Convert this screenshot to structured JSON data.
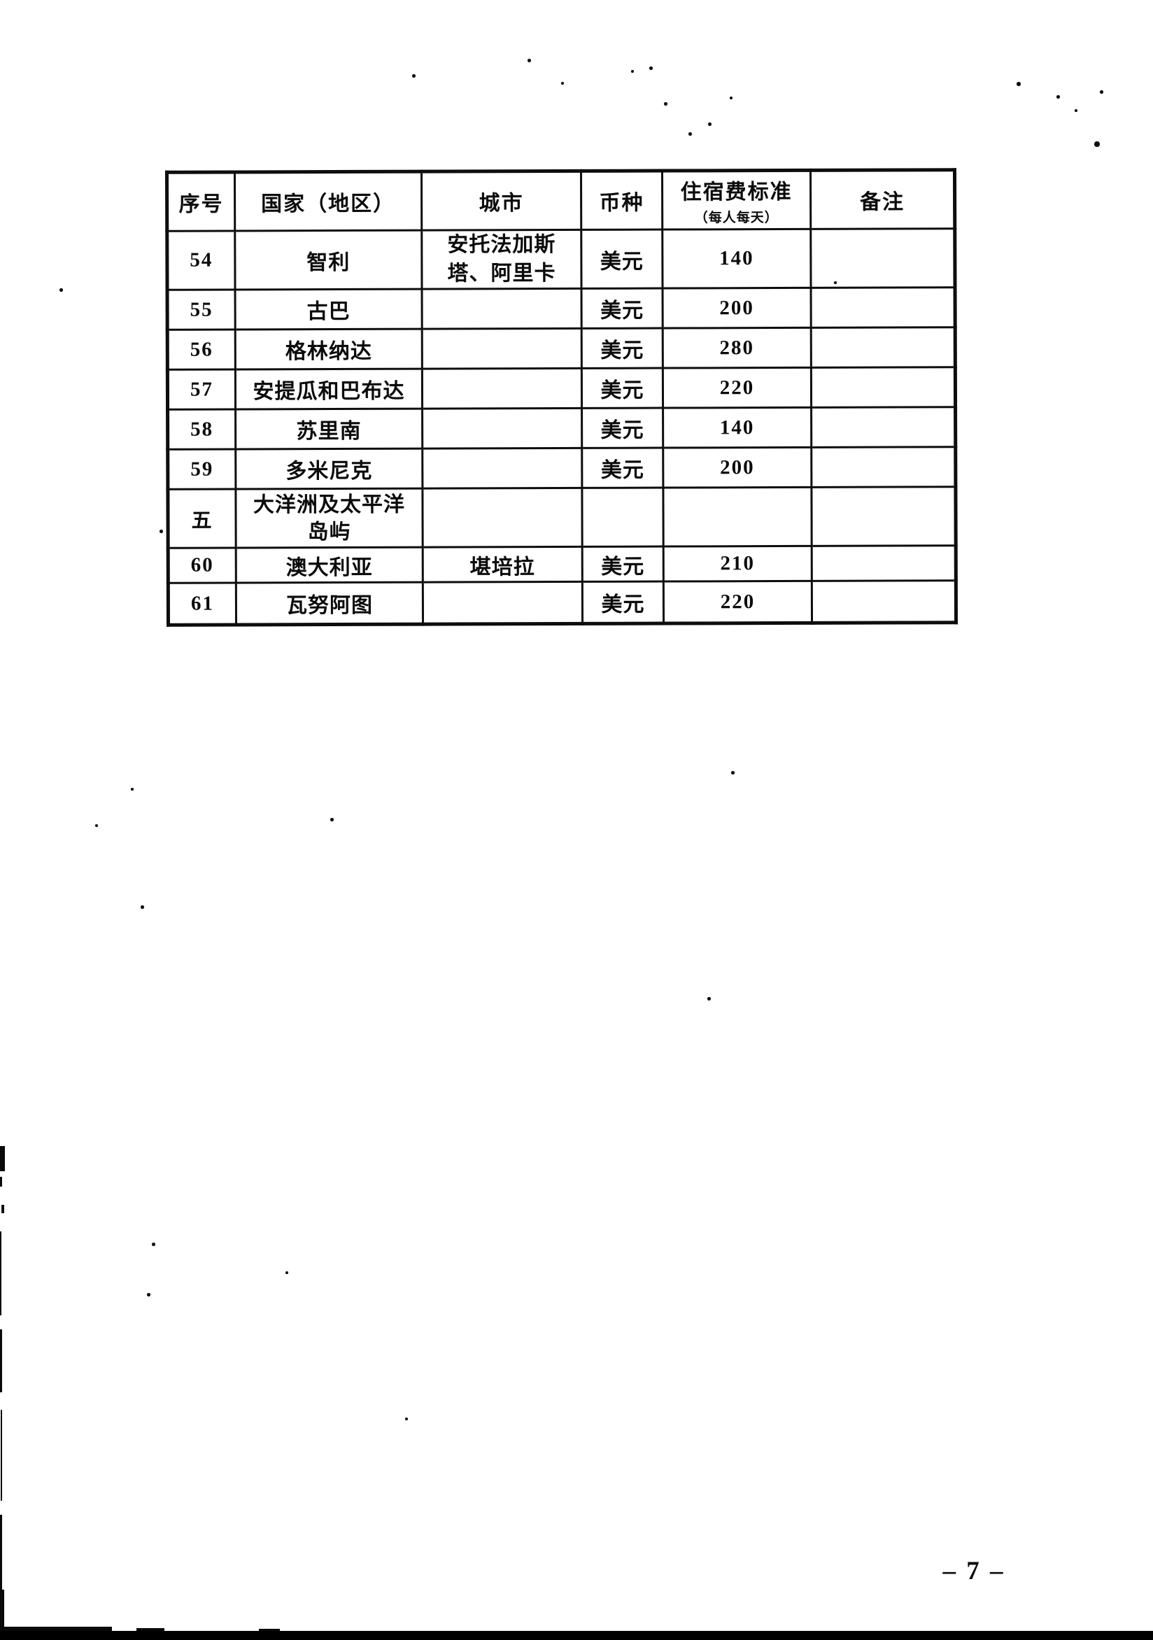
{
  "document": {
    "page_number": "– 7 –"
  },
  "table": {
    "headers": [
      "序号",
      "国家（地区）",
      "城市",
      "币种",
      "住宿费标准",
      "备注"
    ],
    "fee_subheader": "（每人每天）",
    "rows": [
      {
        "no": "54",
        "country": "智利",
        "city": "安托法加斯塔、阿里卡",
        "currency": "美元",
        "fee": "140",
        "note": ""
      },
      {
        "no": "55",
        "country": "古巴",
        "city": "",
        "currency": "美元",
        "fee": "200",
        "note": ""
      },
      {
        "no": "56",
        "country": "格林纳达",
        "city": "",
        "currency": "美元",
        "fee": "280",
        "note": ""
      },
      {
        "no": "57",
        "country": "安提瓜和巴布达",
        "city": "",
        "currency": "美元",
        "fee": "220",
        "note": ""
      },
      {
        "no": "58",
        "country": "苏里南",
        "city": "",
        "currency": "美元",
        "fee": "140",
        "note": ""
      },
      {
        "no": "59",
        "country": "多米尼克",
        "city": "",
        "currency": "美元",
        "fee": "200",
        "note": ""
      },
      {
        "no": "五",
        "country": "大洋洲及太平洋岛屿",
        "city": "",
        "currency": "",
        "fee": "",
        "note": ""
      },
      {
        "no": "60",
        "country": "澳大利亚",
        "city": "堪培拉",
        "currency": "美元",
        "fee": "210",
        "note": ""
      },
      {
        "no": "61",
        "country": "瓦努阿图",
        "city": "",
        "currency": "美元",
        "fee": "220",
        "note": ""
      }
    ]
  },
  "scan_artifacts": {
    "specks": [
      [
        754,
        84,
        5
      ],
      [
        589,
        106,
        5
      ],
      [
        802,
        117,
        4
      ],
      [
        902,
        100,
        4
      ],
      [
        928,
        95,
        5
      ],
      [
        949,
        146,
        5
      ],
      [
        1043,
        138,
        4
      ],
      [
        1012,
        175,
        5
      ],
      [
        984,
        189,
        5
      ],
      [
        1453,
        117,
        6
      ],
      [
        1510,
        136,
        5
      ],
      [
        1572,
        129,
        5
      ],
      [
        1536,
        156,
        4
      ],
      [
        1564,
        202,
        8
      ],
      [
        1192,
        402,
        4
      ],
      [
        85,
        412,
        5
      ],
      [
        228,
        757,
        5
      ],
      [
        187,
        1126,
        4
      ],
      [
        136,
        1178,
        4
      ],
      [
        472,
        1169,
        5
      ],
      [
        201,
        1294,
        5
      ],
      [
        1045,
        1102,
        5
      ],
      [
        1011,
        1425,
        5
      ],
      [
        217,
        1776,
        5
      ],
      [
        408,
        1817,
        4
      ],
      [
        210,
        1848,
        5
      ],
      [
        579,
        2026,
        4
      ]
    ],
    "edge_marks": [
      [
        0,
        1638,
        7,
        36
      ],
      [
        0,
        1682,
        3,
        14
      ],
      [
        2,
        1722,
        4,
        12
      ],
      [
        0,
        1760,
        2,
        120
      ],
      [
        0,
        1900,
        3,
        90
      ],
      [
        1,
        2015,
        2,
        130
      ],
      [
        0,
        2165,
        3,
        110
      ],
      [
        0,
        2272,
        6,
        60
      ],
      [
        0,
        2325,
        160,
        7
      ],
      [
        195,
        2327,
        40,
        5
      ],
      [
        370,
        2328,
        30,
        4
      ]
    ]
  }
}
